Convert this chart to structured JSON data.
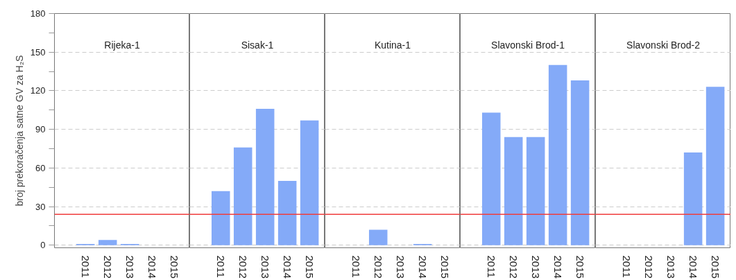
{
  "chart_data": [
    {
      "type": "bar",
      "title": "Rijeka-1",
      "ylabel": "broj prekoračenja satne GV za H₂S",
      "categories": [
        "2011",
        "2012",
        "2013",
        "2014",
        "2015"
      ],
      "values": [
        1,
        4,
        1,
        0,
        0
      ],
      "color": "#84aaf8",
      "ylim": [
        -2,
        180
      ],
      "yticks": [
        0,
        {
          "value": 15,
          "label": null
        },
        30,
        {
          "value": 45,
          "label": null
        },
        60,
        {
          "value": 75,
          "label": null
        },
        90,
        {
          "value": 105,
          "label": null
        },
        120,
        {
          "value": 135,
          "label": null
        },
        150,
        {
          "value": 165,
          "label": null
        },
        180
      ],
      "grid": "y",
      "ref_lines": [
        {
          "axis": "y",
          "value": 24,
          "color": "#f03c3c"
        }
      ]
    },
    {
      "type": "bar",
      "title": "Sisak-1",
      "categories": [
        "2011",
        "2012",
        "2013",
        "2014",
        "2015"
      ],
      "values": [
        42,
        76,
        106,
        50,
        97
      ],
      "color": "#84aaf8",
      "ylim": [
        -2,
        180
      ],
      "yticks": [
        0,
        30,
        60,
        90,
        120,
        150,
        180
      ],
      "grid": "y",
      "tick_labels": "x",
      "ref_lines": [
        {
          "axis": "y",
          "value": 24,
          "color": "#f03c3c"
        }
      ]
    },
    {
      "type": "bar",
      "title": "Kutina-1",
      "categories": [
        "2011",
        "2012",
        "2013",
        "2014",
        "2015"
      ],
      "values": [
        0,
        12,
        0,
        1,
        0
      ],
      "color": "#84aaf8",
      "ylim": [
        -2,
        180
      ],
      "yticks": [
        0,
        30,
        60,
        90,
        120,
        150,
        180
      ],
      "grid": "y",
      "tick_labels": "x",
      "ref_lines": [
        {
          "axis": "y",
          "value": 24,
          "color": "#f03c3c"
        }
      ]
    },
    {
      "type": "bar",
      "title": "Slavonski Brod-1",
      "categories": [
        "2011",
        "2012",
        "2013",
        "2014",
        "2015"
      ],
      "values": [
        103,
        84,
        84,
        140,
        128
      ],
      "color": "#84aaf8",
      "ylim": [
        -2,
        180
      ],
      "yticks": [
        0,
        30,
        60,
        90,
        120,
        150,
        180
      ],
      "grid": "y",
      "tick_labels": "x",
      "ref_lines": [
        {
          "axis": "y",
          "value": 24,
          "color": "#f03c3c"
        }
      ]
    },
    {
      "type": "bar",
      "title": "Slavonski Brod-2",
      "categories": [
        "2011",
        "2012",
        "2013",
        "2014",
        "2015"
      ],
      "values": [
        0,
        0,
        0,
        72,
        123
      ],
      "color": "#84aaf8",
      "ylim": [
        -2,
        180
      ],
      "yticks": [
        0,
        30,
        60,
        90,
        120,
        150,
        180
      ],
      "grid": "y",
      "tick_labels": "x",
      "ref_lines": [
        {
          "axis": "y",
          "value": 24,
          "color": "#f03c3c"
        }
      ]
    }
  ]
}
